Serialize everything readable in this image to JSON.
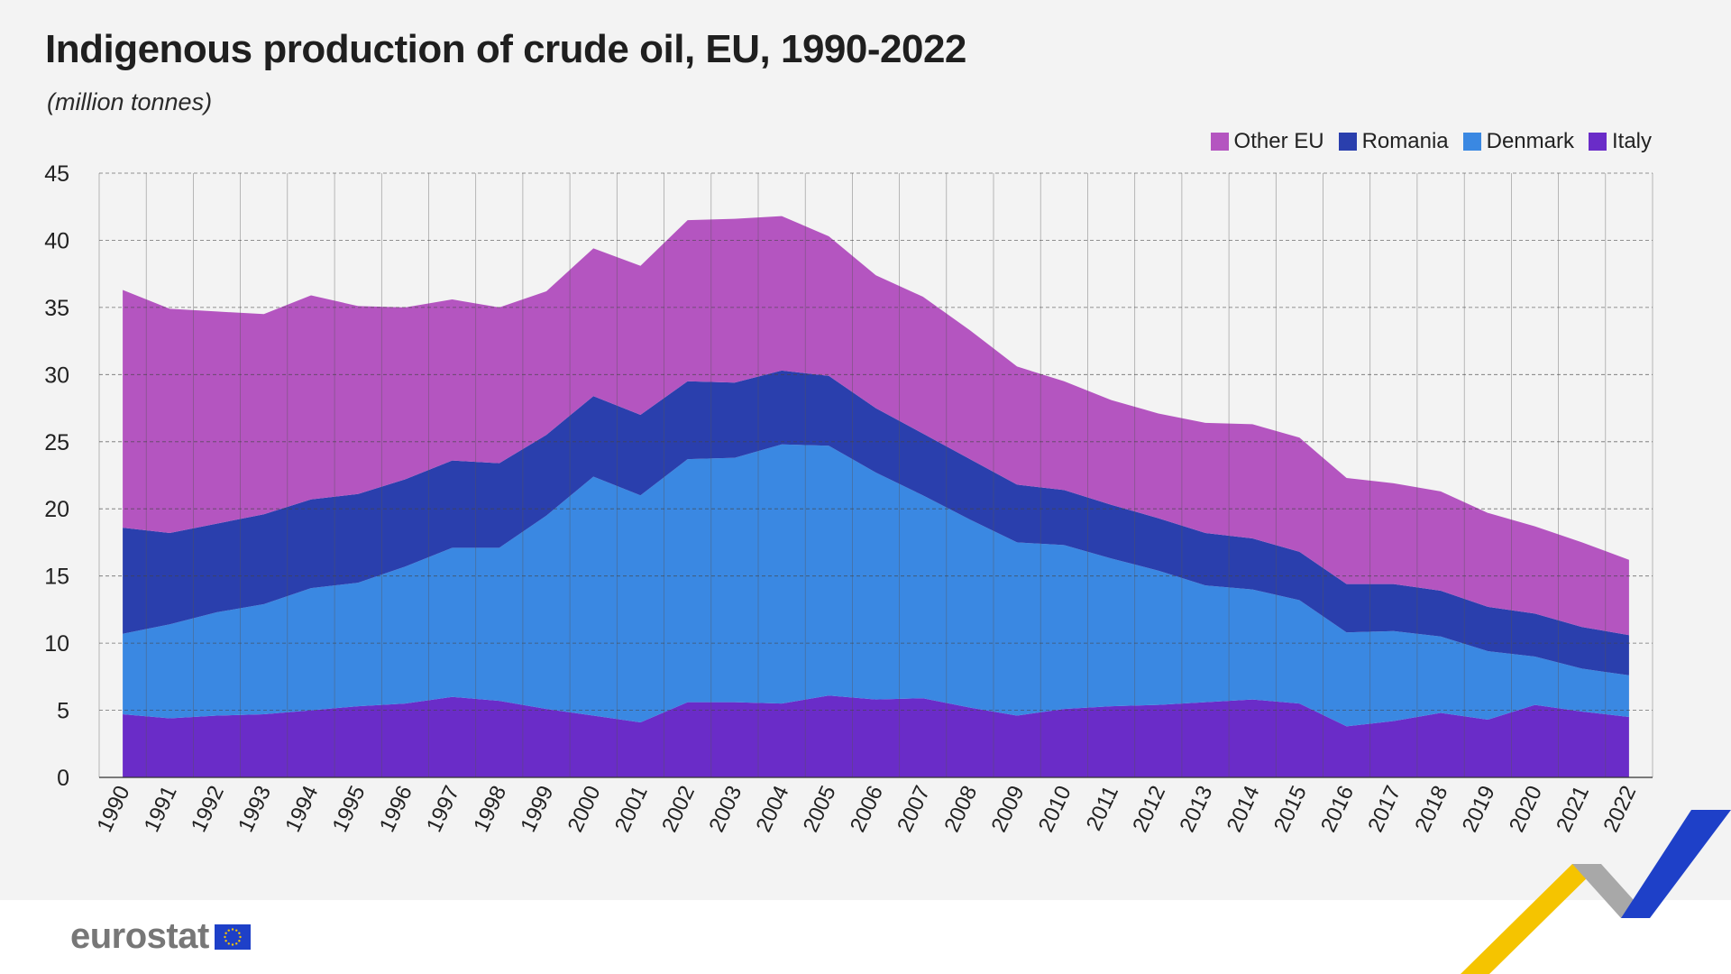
{
  "title": "Indigenous production of crude oil, EU, 1990-2022",
  "subtitle": "(million tonnes)",
  "brand": {
    "name": "eurostat"
  },
  "colors": {
    "other_eu": "#b455c0",
    "romania": "#2a3fad",
    "denmark": "#3a88e2",
    "italy": "#6a2cc8",
    "background": "#f3f3f3",
    "deco_blue": "#1e40c8",
    "deco_yellow": "#f5c400",
    "deco_grey": "#a8a8a8"
  },
  "chart_data": {
    "type": "area",
    "stacked": true,
    "title": "Indigenous production of crude oil, EU, 1990-2022",
    "ylabel": "(million tonnes)",
    "xlabel": "",
    "ylim": [
      0,
      45
    ],
    "yticks": [
      0,
      5,
      10,
      15,
      20,
      25,
      30,
      35,
      40,
      45
    ],
    "grid": true,
    "legend_position": "top-right",
    "x": [
      "1990",
      "1991",
      "1992",
      "1993",
      "1994",
      "1995",
      "1996",
      "1997",
      "1998",
      "1999",
      "2000",
      "2001",
      "2002",
      "2003",
      "2004",
      "2005",
      "2006",
      "2007",
      "2008",
      "2009",
      "2010",
      "2011",
      "2012",
      "2013",
      "2014",
      "2015",
      "2016",
      "2017",
      "2018",
      "2019",
      "2020",
      "2021",
      "2022"
    ],
    "legend_order": [
      "Other EU",
      "Romania",
      "Denmark",
      "Italy"
    ],
    "series": [
      {
        "name": "Italy",
        "color": "#6a2cc8",
        "values": [
          4.7,
          4.4,
          4.6,
          4.7,
          5.0,
          5.3,
          5.5,
          6.0,
          5.7,
          5.1,
          4.6,
          4.1,
          5.6,
          5.6,
          5.5,
          6.1,
          5.8,
          5.9,
          5.2,
          4.6,
          5.1,
          5.3,
          5.4,
          5.6,
          5.8,
          5.5,
          3.8,
          4.2,
          4.8,
          4.3,
          5.4,
          4.9,
          4.5
        ]
      },
      {
        "name": "Denmark",
        "color": "#3a88e2",
        "values": [
          6.0,
          7.0,
          7.7,
          8.2,
          9.1,
          9.2,
          10.2,
          11.1,
          11.4,
          14.4,
          17.8,
          16.9,
          18.1,
          18.2,
          19.3,
          18.6,
          16.9,
          15.1,
          14.0,
          12.9,
          12.2,
          11.0,
          10.0,
          8.7,
          8.2,
          7.7,
          7.0,
          6.7,
          5.7,
          5.1,
          3.6,
          3.2,
          3.1
        ]
      },
      {
        "name": "Romania",
        "color": "#2a3fad",
        "values": [
          7.9,
          6.8,
          6.6,
          6.7,
          6.6,
          6.6,
          6.5,
          6.5,
          6.3,
          6.0,
          6.0,
          6.0,
          5.8,
          5.6,
          5.5,
          5.2,
          4.8,
          4.6,
          4.5,
          4.3,
          4.1,
          4.0,
          3.9,
          3.9,
          3.8,
          3.6,
          3.6,
          3.5,
          3.4,
          3.3,
          3.2,
          3.1,
          3.0
        ]
      },
      {
        "name": "Other EU",
        "color": "#b455c0",
        "values": [
          17.7,
          16.7,
          15.8,
          14.9,
          15.2,
          14.0,
          12.8,
          12.0,
          11.6,
          10.7,
          11.0,
          11.1,
          12.0,
          12.2,
          11.5,
          10.4,
          9.9,
          10.2,
          9.6,
          8.8,
          8.1,
          7.8,
          7.8,
          8.2,
          8.5,
          8.5,
          7.9,
          7.5,
          7.4,
          7.0,
          6.5,
          6.3,
          5.6
        ]
      }
    ]
  }
}
